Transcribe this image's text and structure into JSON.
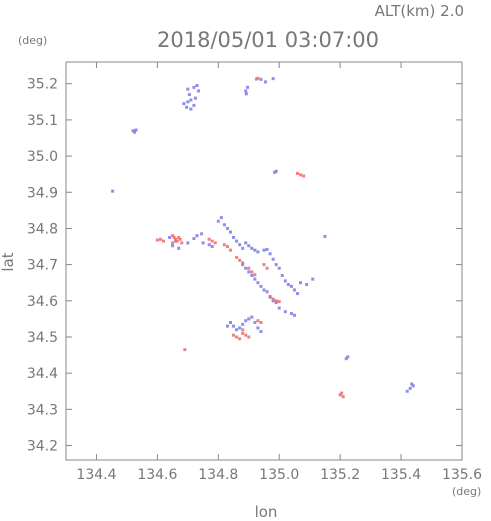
{
  "header": {
    "altitude": "ALT(km) 2.0",
    "timestamp": "2018/05/01 03:07:00"
  },
  "chart_data": {
    "type": "scatter",
    "title": "2018/05/01 03:07:00",
    "subtitle": "ALT(km) 2.0",
    "xlabel": "lon",
    "ylabel": "lat",
    "x_unit": "(deg)",
    "y_unit": "(deg)",
    "xlim": [
      134.3,
      135.6
    ],
    "ylim": [
      34.16,
      35.26
    ],
    "x_ticks": [
      134.4,
      134.6,
      134.8,
      135.0,
      135.2,
      135.4,
      135.6
    ],
    "x_tick_labels": [
      "134.4",
      "134.6",
      "134.8",
      "135.0",
      "135.2",
      "135.4",
      "135.6"
    ],
    "y_ticks": [
      34.2,
      34.3,
      34.4,
      34.5,
      34.6,
      34.7,
      34.8,
      34.9,
      35.0,
      35.1,
      35.2
    ],
    "y_tick_labels": [
      "34.2",
      "34.3",
      "34.4",
      "34.5",
      "34.6",
      "34.7",
      "34.8",
      "34.9",
      "35.0",
      "35.1",
      "35.2"
    ],
    "grid": false,
    "colors": {
      "positive": "#f06a6a",
      "negative": "#7a7ae8",
      "axis": "#888888",
      "text": "#777777"
    },
    "series": [
      {
        "color": "#7a7ae8",
        "points": [
          [
            134.687,
            35.145
          ],
          [
            134.7,
            35.15
          ],
          [
            134.71,
            35.155
          ],
          [
            134.705,
            35.17
          ],
          [
            134.696,
            35.135
          ],
          [
            134.71,
            35.13
          ],
          [
            134.72,
            35.14
          ],
          [
            134.725,
            35.16
          ],
          [
            134.735,
            35.18
          ],
          [
            134.73,
            35.195
          ],
          [
            134.72,
            35.19
          ],
          [
            134.7,
            35.185
          ],
          [
            134.89,
            35.18
          ],
          [
            134.896,
            35.19
          ],
          [
            134.892,
            35.172
          ],
          [
            134.94,
            35.212
          ],
          [
            134.98,
            35.214
          ],
          [
            134.955,
            35.205
          ],
          [
            134.52,
            35.07
          ],
          [
            134.525,
            35.066
          ],
          [
            134.53,
            35.072
          ],
          [
            134.453,
            34.903
          ],
          [
            134.985,
            34.955
          ],
          [
            134.99,
            34.958
          ],
          [
            134.64,
            34.775
          ],
          [
            134.66,
            34.765
          ],
          [
            134.65,
            34.752
          ],
          [
            134.67,
            34.745
          ],
          [
            134.7,
            34.76
          ],
          [
            134.72,
            34.772
          ],
          [
            134.73,
            34.78
          ],
          [
            134.745,
            34.785
          ],
          [
            134.75,
            34.76
          ],
          [
            134.77,
            34.755
          ],
          [
            134.78,
            34.75
          ],
          [
            134.8,
            34.82
          ],
          [
            134.81,
            34.83
          ],
          [
            134.82,
            34.81
          ],
          [
            134.83,
            34.8
          ],
          [
            134.84,
            34.79
          ],
          [
            134.85,
            34.775
          ],
          [
            134.86,
            34.765
          ],
          [
            134.87,
            34.755
          ],
          [
            134.88,
            34.745
          ],
          [
            134.89,
            34.76
          ],
          [
            134.9,
            34.752
          ],
          [
            134.91,
            34.745
          ],
          [
            134.92,
            34.74
          ],
          [
            134.93,
            34.735
          ],
          [
            134.95,
            34.74
          ],
          [
            134.96,
            34.742
          ],
          [
            134.97,
            34.73
          ],
          [
            134.98,
            34.715
          ],
          [
            134.99,
            34.7
          ],
          [
            135.0,
            34.69
          ],
          [
            135.01,
            34.67
          ],
          [
            135.02,
            34.655
          ],
          [
            135.03,
            34.645
          ],
          [
            135.04,
            34.64
          ],
          [
            135.05,
            34.63
          ],
          [
            135.06,
            34.62
          ],
          [
            135.07,
            34.65
          ],
          [
            135.09,
            34.645
          ],
          [
            135.11,
            34.66
          ],
          [
            135.15,
            34.778
          ],
          [
            134.88,
            34.7
          ],
          [
            134.89,
            34.69
          ],
          [
            134.9,
            34.68
          ],
          [
            134.91,
            34.67
          ],
          [
            134.92,
            34.66
          ],
          [
            134.93,
            34.65
          ],
          [
            134.94,
            34.64
          ],
          [
            134.95,
            34.63
          ],
          [
            134.96,
            34.625
          ],
          [
            134.97,
            34.61
          ],
          [
            134.98,
            34.6
          ],
          [
            134.99,
            34.595
          ],
          [
            135.0,
            34.58
          ],
          [
            135.02,
            34.57
          ],
          [
            135.04,
            34.565
          ],
          [
            135.05,
            34.56
          ],
          [
            134.84,
            34.54
          ],
          [
            134.85,
            34.53
          ],
          [
            134.86,
            34.52
          ],
          [
            134.87,
            34.525
          ],
          [
            134.88,
            34.535
          ],
          [
            134.89,
            34.545
          ],
          [
            134.9,
            34.55
          ],
          [
            134.91,
            34.555
          ],
          [
            134.92,
            34.54
          ],
          [
            134.93,
            34.525
          ],
          [
            134.94,
            34.515
          ],
          [
            134.83,
            34.53
          ],
          [
            135.22,
            34.44
          ],
          [
            135.225,
            34.445
          ],
          [
            135.42,
            34.35
          ],
          [
            135.43,
            34.358
          ],
          [
            135.44,
            34.365
          ],
          [
            135.435,
            34.37
          ]
        ]
      },
      {
        "color": "#f06a6a",
        "points": [
          [
            134.925,
            35.213
          ],
          [
            134.93,
            35.215
          ],
          [
            135.06,
            34.952
          ],
          [
            135.07,
            34.948
          ],
          [
            135.08,
            34.945
          ],
          [
            134.6,
            34.768
          ],
          [
            134.61,
            34.77
          ],
          [
            134.62,
            34.765
          ],
          [
            134.65,
            34.78
          ],
          [
            134.655,
            34.775
          ],
          [
            134.66,
            34.77
          ],
          [
            134.665,
            34.765
          ],
          [
            134.67,
            34.775
          ],
          [
            134.675,
            34.77
          ],
          [
            134.68,
            34.76
          ],
          [
            134.65,
            34.76
          ],
          [
            134.77,
            34.77
          ],
          [
            134.78,
            34.765
          ],
          [
            134.79,
            34.76
          ],
          [
            134.82,
            34.755
          ],
          [
            134.83,
            34.75
          ],
          [
            134.84,
            34.74
          ],
          [
            134.86,
            34.72
          ],
          [
            134.87,
            34.712
          ],
          [
            134.88,
            34.705
          ],
          [
            134.9,
            34.69
          ],
          [
            134.91,
            34.68
          ],
          [
            134.92,
            34.672
          ],
          [
            134.95,
            34.7
          ],
          [
            134.96,
            34.69
          ],
          [
            134.97,
            34.612
          ],
          [
            134.98,
            34.605
          ],
          [
            134.99,
            34.6
          ],
          [
            135.0,
            34.598
          ],
          [
            134.85,
            34.505
          ],
          [
            134.86,
            34.5
          ],
          [
            134.87,
            34.495
          ],
          [
            134.88,
            34.51
          ],
          [
            134.89,
            34.505
          ],
          [
            134.9,
            34.5
          ],
          [
            134.88,
            34.52
          ],
          [
            134.93,
            34.545
          ],
          [
            134.94,
            34.54
          ],
          [
            134.69,
            34.465
          ],
          [
            135.2,
            34.34
          ],
          [
            135.21,
            34.335
          ],
          [
            135.205,
            34.345
          ]
        ]
      }
    ]
  }
}
